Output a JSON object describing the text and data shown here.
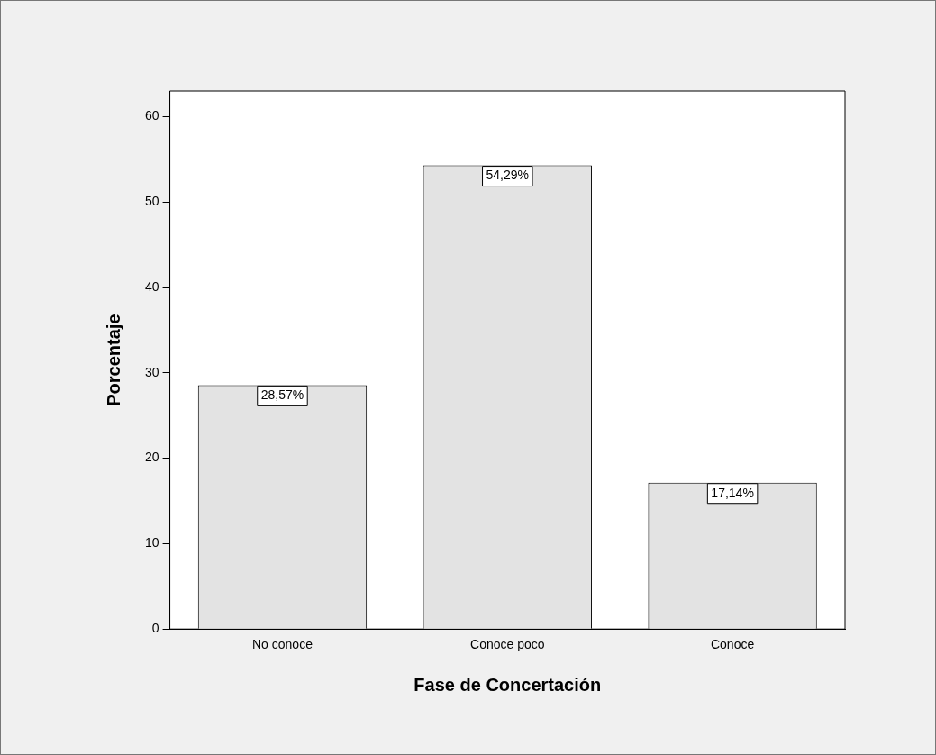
{
  "chart_data": {
    "type": "bar",
    "xlabel": "Fase de Concertación",
    "ylabel": "Porcentaje",
    "categories": [
      "No conoce",
      "Conoce poco",
      "Conoce"
    ],
    "values": [
      28.57,
      54.29,
      17.14
    ],
    "value_labels": [
      "28,57%",
      "54,29%",
      "17,14%"
    ],
    "color": "#e3e3e3",
    "ylim": [
      0,
      63
    ],
    "yticks": [
      0,
      10,
      20,
      30,
      40,
      50,
      60
    ],
    "legend": false
  }
}
